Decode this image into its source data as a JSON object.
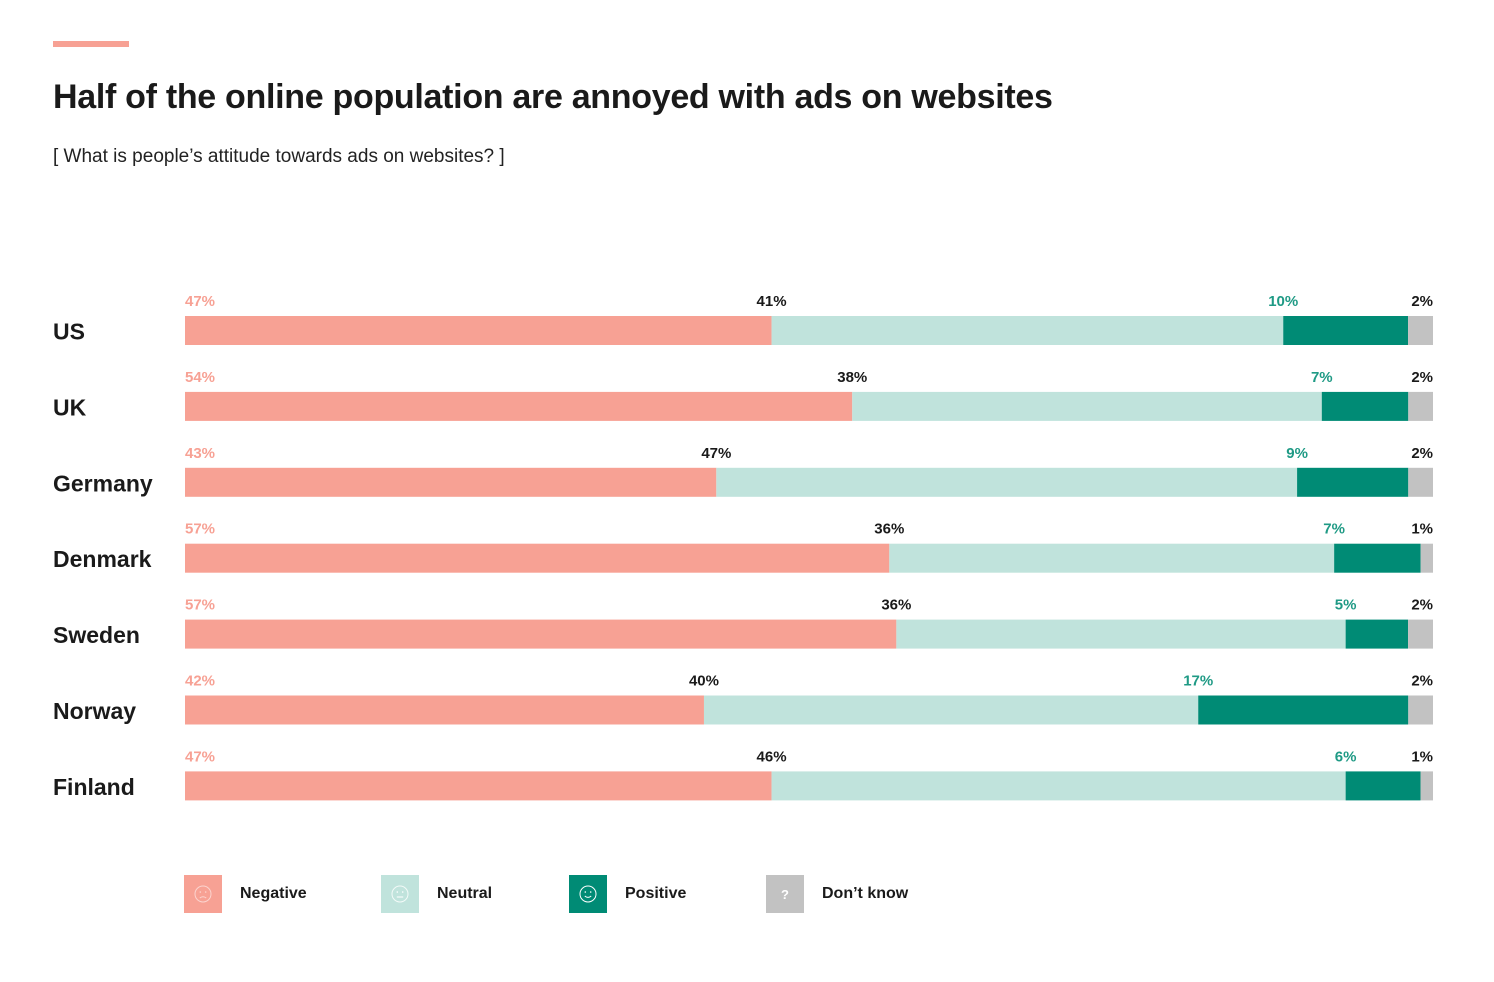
{
  "header": {
    "title": "Half of the online population are annoyed with ads on websites",
    "subtitle": "[ What is people’s attitude towards ads on websites? ]"
  },
  "colors": {
    "accent": "#f7a194",
    "negative": "#f7a194",
    "neutral": "#c0e3dc",
    "positive": "#008b75",
    "dont_know": "#c2c2c2",
    "negative_text": "#f7a194",
    "neutral_text": "#1a1a1a",
    "positive_text": "#1f9a85",
    "dont_know_text": "#1a1a1a"
  },
  "chart_data": {
    "type": "bar",
    "orientation": "horizontal",
    "stacked": true,
    "normalized": true,
    "title": "Half of the online population are annoyed with ads on websites",
    "subtitle": "[ What is people’s attitude towards ads on websites? ]",
    "categories": [
      "US",
      "UK",
      "Germany",
      "Denmark",
      "Sweden",
      "Norway",
      "Finland"
    ],
    "series": [
      {
        "name": "Negative",
        "key": "negative",
        "values": [
          47,
          54,
          43,
          57,
          57,
          42,
          47
        ],
        "labels": [
          "47%",
          "54%",
          "43%",
          "57%",
          "57%",
          "42%",
          "47%"
        ]
      },
      {
        "name": "Neutral",
        "key": "neutral",
        "values": [
          41,
          38,
          47,
          36,
          36,
          40,
          46
        ],
        "labels": [
          "41%",
          "38%",
          "47%",
          "36%",
          "36%",
          "40%",
          "46%"
        ]
      },
      {
        "name": "Positive",
        "key": "positive",
        "values": [
          10,
          7,
          9,
          7,
          5,
          17,
          6
        ],
        "labels": [
          "10%",
          "7%",
          "9%",
          "7%",
          "5%",
          "17%",
          "6%"
        ]
      },
      {
        "name": "Don’t know",
        "key": "dont_know",
        "values": [
          2,
          2,
          2,
          1,
          2,
          2,
          1
        ],
        "labels": [
          "2%",
          "2%",
          "2%",
          "1%",
          "2%",
          "2%",
          "1%"
        ]
      }
    ],
    "legend_position": "bottom-left"
  },
  "legend": {
    "items": [
      {
        "label": "Negative",
        "icon": "frown-face-icon",
        "glyph": "☹"
      },
      {
        "label": "Neutral",
        "icon": "neutral-face-icon",
        "glyph": "😐"
      },
      {
        "label": "Positive",
        "icon": "smile-face-icon",
        "glyph": "☺"
      },
      {
        "label": "Don’t know",
        "icon": "question-mark-icon",
        "glyph": "?"
      }
    ]
  }
}
